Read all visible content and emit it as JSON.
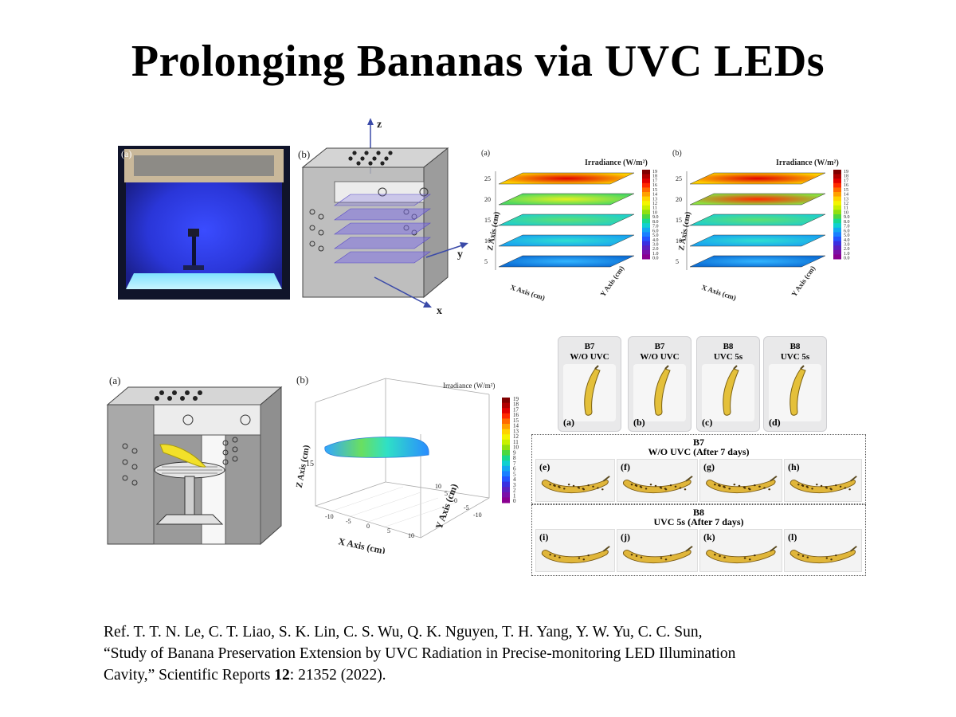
{
  "title": "Prolonging Bananas via UVC LEDs",
  "fig1": {
    "photo_label": "(a)",
    "cavity_label": "(b)",
    "axis_z": "z",
    "axis_y": "y",
    "axis_x": "x"
  },
  "fig2": {
    "panel_a_label": "(a)",
    "panel_b_label": "(b)",
    "legend_title": "Irradiance (W/m²)",
    "z_axis_label": "Z Axis (cm)",
    "x_axis_label": "X Axis (cm)",
    "y_axis_label": "Y Axis (cm)",
    "z_ticks": [
      "5",
      "10",
      "15",
      "20",
      "25"
    ],
    "colorbar_ticks": [
      "19",
      "18",
      "17",
      "16",
      "15",
      "14",
      "13",
      "12",
      "11",
      "10",
      "9.0",
      "8.0",
      "7.0",
      "6.0",
      "5.0",
      "4.0",
      "3.0",
      "2.0",
      "1.0",
      "0.0"
    ]
  },
  "fig3": {
    "panel_a_label": "(a)",
    "panel_b_label": "(b)",
    "legend_title": "Irradiance (W/m²)",
    "z_axis_label": "Z Axis (cm)",
    "x_axis_label": "X Axis (cm)",
    "y_axis_label": "Y Axis (cm)",
    "z_tick": "15",
    "x_ticks": [
      "-10",
      "-5",
      "0",
      "5",
      "10"
    ],
    "y_ticks": [
      "10",
      "5",
      "0",
      "-5",
      "-10"
    ],
    "colorbar_ticks": [
      "19",
      "18",
      "17",
      "16",
      "15",
      "14",
      "13",
      "12",
      "11",
      "10",
      "9",
      "8",
      "7",
      "6",
      "5",
      "4",
      "3",
      "2",
      "1",
      "0"
    ]
  },
  "fig4": {
    "cards": [
      {
        "line1": "B7",
        "line2": "W/O UVC",
        "tag": "(a)"
      },
      {
        "line1": "B7",
        "line2": "W/O UVC",
        "tag": "(b)"
      },
      {
        "line1": "B8",
        "line2": "UVC 5s",
        "tag": "(c)"
      },
      {
        "line1": "B8",
        "line2": "UVC 5s",
        "tag": "(d)"
      }
    ],
    "group1": {
      "line1": "B7",
      "line2": "W/O UVC (After 7 days)",
      "tags": [
        "(e)",
        "(f)",
        "(g)",
        "(h)"
      ]
    },
    "group2": {
      "line1": "B8",
      "line2": "UVC 5s (After 7 days)",
      "tags": [
        "(i)",
        "(j)",
        "(k)",
        "(l)"
      ]
    }
  },
  "reference": {
    "line1": "Ref. T. T. N. Le, C. T. Liao, S. K. Lin, C. S. Wu, Q. K. Nguyen, T. H. Yang, Y. W. Yu, C. C. Sun,",
    "line2": "“Study of Banana Preservation Extension by UVC Radiation in Precise-monitoring LED Illumination",
    "line3_pre": "Cavity,” Scientific Reports ",
    "line3_bold": "12",
    "line3_post": ": 21352 (2022)."
  },
  "colors": {
    "uv_blue": "#2f3fe6",
    "cavity_gray": "#a3a3a3",
    "banana_yellow": "#e7c23a"
  }
}
